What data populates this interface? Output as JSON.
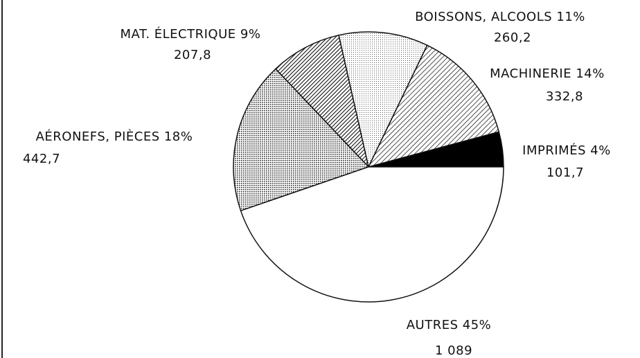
{
  "chart_data": {
    "type": "pie",
    "categories": [
      "IMPRIMÉS",
      "MACHINERIE",
      "BOISSONS, ALCOOLS",
      "MAT. ÉLECTRIQUE",
      "AÉRONEFS, PIÈCES",
      "AUTRES"
    ],
    "values": [
      4,
      14,
      11,
      9,
      18,
      45
    ],
    "value_labels": [
      "4%",
      "14%",
      "11%",
      "9%",
      "18%",
      "45%"
    ],
    "amounts": [
      101.7,
      332.8,
      260.2,
      207.8,
      442.7,
      1089
    ],
    "amount_labels": [
      "101,7",
      "332,8",
      "260,2",
      "207,8",
      "442,7",
      "1 089"
    ]
  }
}
